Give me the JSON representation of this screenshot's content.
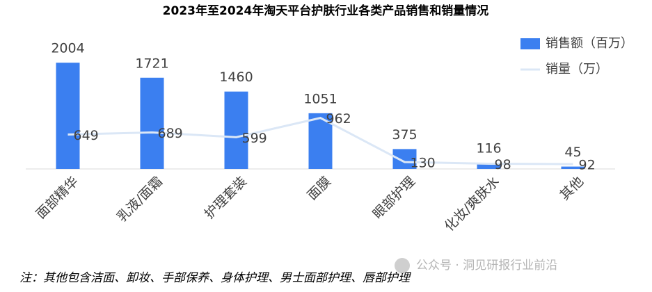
{
  "chart_data": {
    "type": "bar",
    "title": "2023年至2024年淘天平台护肤行业各类产品销售和销量情况",
    "categories": [
      "面部精华",
      "乳液/面霜",
      "护理套装",
      "面膜",
      "眼部护理",
      "化妆/爽肤水",
      "其他"
    ],
    "series": [
      {
        "name": "销售额（百万）",
        "type": "bar",
        "color": "#3b7ff0",
        "values": [
          2004,
          1721,
          1460,
          1051,
          375,
          116,
          45
        ]
      },
      {
        "name": "销量（万）",
        "type": "line",
        "color": "#dbe7f6",
        "values": [
          649,
          689,
          599,
          962,
          130,
          98,
          92
        ]
      }
    ],
    "ylim": [
      0,
      2400
    ],
    "legend": "top-right",
    "note": "注：其他包含洁面、卸妆、手部保养、身体护理、男士面部护理、唇部护理",
    "watermark": "公众号 · 洞见研报行业前沿"
  }
}
